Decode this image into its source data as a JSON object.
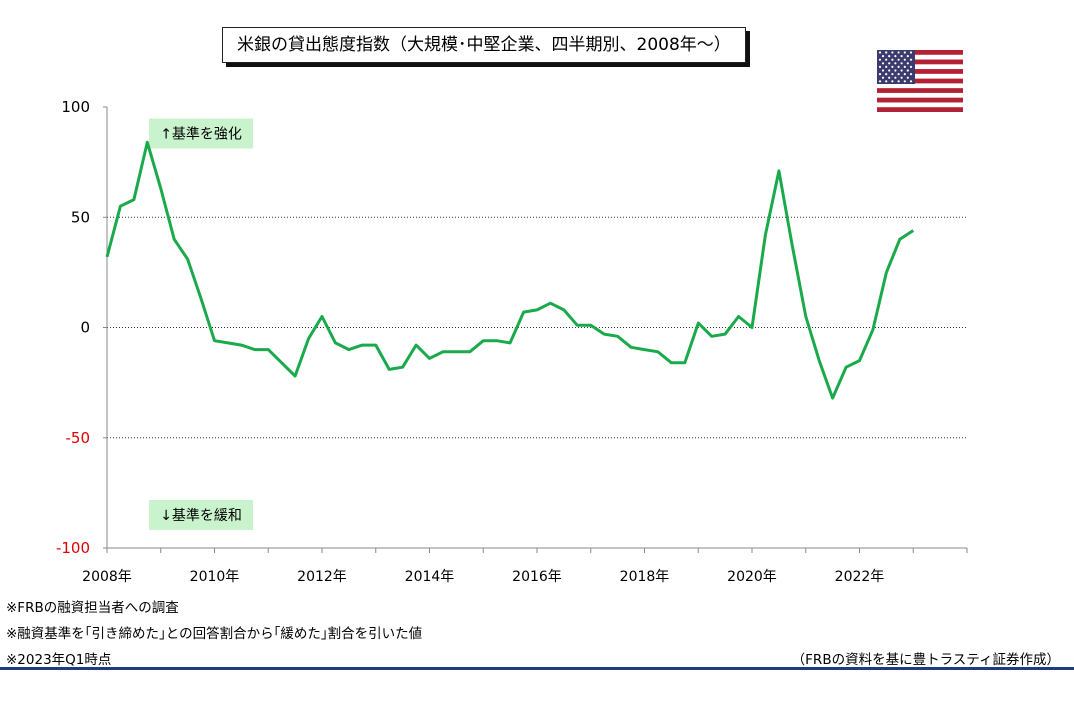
{
  "title": "米銀の貸出態度指数（大規模･中堅企業、四半期別、2008年～）",
  "flag": {
    "icon": "us-flag-icon",
    "colors": {
      "red": "#b22234",
      "white": "#ffffff",
      "blue": "#3c3b6e"
    }
  },
  "notes": [
    "※FRBの融資担当者への調査",
    "※融資基準を｢引き締めた｣との回答割合から｢緩めた｣割合を引いた値",
    "※2023年Q1時点"
  ],
  "source": "（FRBの資料を基に豊トラスティ証券作成）",
  "chart_data": {
    "type": "line",
    "title": "米銀の貸出態度指数（大規模･中堅企業、四半期別、2008年～）",
    "xlabel": "",
    "ylabel": "",
    "ylim": [
      -100,
      100
    ],
    "yticks": [
      100,
      50,
      0,
      -50,
      -100
    ],
    "ytick_labels": [
      "100",
      "50",
      "0",
      "-50",
      "-100"
    ],
    "xlim": [
      2008,
      2024
    ],
    "xticks": [
      2008,
      2010,
      2012,
      2014,
      2016,
      2018,
      2020,
      2022
    ],
    "xtick_labels": [
      "2008年",
      "2010年",
      "2012年",
      "2014年",
      "2016年",
      "2018年",
      "2020年",
      "2022年"
    ],
    "gridlines_y": [
      50,
      0,
      -50
    ],
    "negative_label_color": "#e00000",
    "line_color": "#1aaa4b",
    "annotations": [
      {
        "text": "↑基準を強化",
        "x": 2009.75,
        "y": 88
      },
      {
        "text": "↓基準を緩和",
        "x": 2009.75,
        "y": -85
      }
    ],
    "series": [
      {
        "x": [
          2008.0,
          2008.25,
          2008.5,
          2008.75,
          2009.0,
          2009.25,
          2009.5,
          2009.75,
          2010.0,
          2010.25,
          2010.5,
          2010.75,
          2011.0,
          2011.25,
          2011.5,
          2011.75,
          2012.0,
          2012.25,
          2012.5,
          2012.75,
          2013.0,
          2013.25,
          2013.5,
          2013.75,
          2014.0,
          2014.25,
          2014.5,
          2014.75,
          2015.0,
          2015.25,
          2015.5,
          2015.75,
          2016.0,
          2016.25,
          2016.5,
          2016.75,
          2017.0,
          2017.25,
          2017.5,
          2017.75,
          2018.0,
          2018.25,
          2018.5,
          2018.75,
          2019.0,
          2019.25,
          2019.5,
          2019.75,
          2020.0,
          2020.25,
          2020.5,
          2020.75,
          2021.0,
          2021.25,
          2021.5,
          2021.75,
          2022.0,
          2022.25,
          2022.5,
          2022.75,
          2023.0
        ],
        "y": [
          32,
          55,
          58,
          84,
          63,
          40,
          31,
          13,
          -6,
          -7,
          -8,
          -10,
          -10,
          -16,
          -22,
          -5,
          5,
          -7,
          -10,
          -8,
          -8,
          -19,
          -18,
          -8,
          -14,
          -11,
          -11,
          -11,
          -6,
          -6,
          -7,
          7,
          8,
          11,
          8,
          1,
          1,
          -3,
          -4,
          -9,
          -10,
          -11,
          -16,
          -16,
          2,
          -4,
          -3,
          5,
          0,
          42,
          71,
          37,
          5,
          -15,
          -32,
          -18,
          -15,
          -1,
          25,
          40,
          44
        ]
      }
    ]
  }
}
